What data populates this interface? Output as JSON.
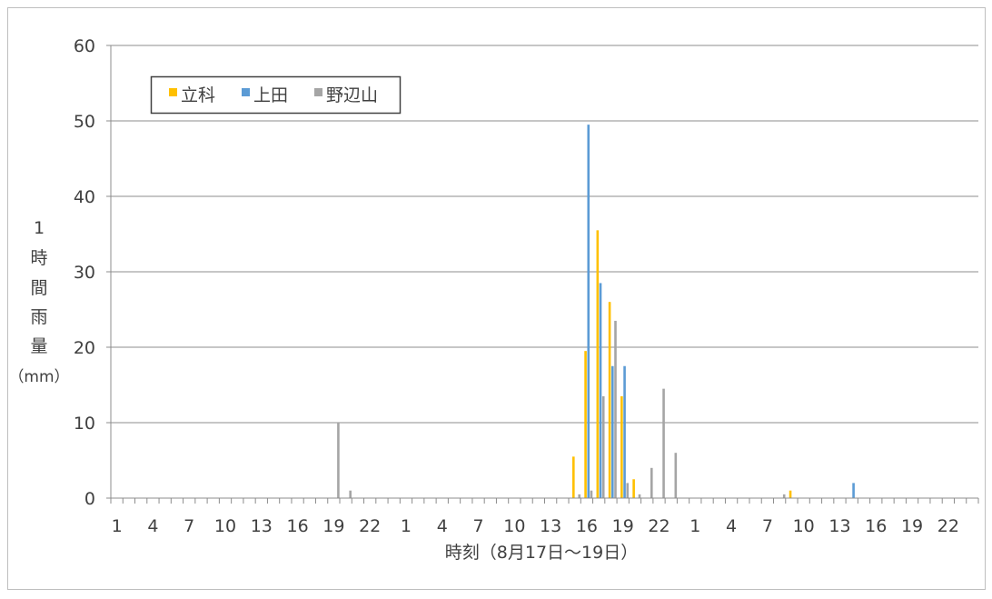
{
  "chart_data": {
    "type": "bar",
    "title": "",
    "xlabel": "時刻（8月17日～19日）",
    "ylabel_chars": [
      "1",
      "時",
      "間",
      "雨",
      "量",
      "（mm）"
    ],
    "ylim": [
      0,
      60
    ],
    "yticks": [
      0,
      10,
      20,
      30,
      40,
      50,
      60
    ],
    "x_tick_labels": [
      "1",
      "4",
      "7",
      "10",
      "13",
      "16",
      "19",
      "22",
      "1",
      "4",
      "7",
      "10",
      "13",
      "16",
      "19",
      "22",
      "1",
      "4",
      "7",
      "10",
      "13",
      "16",
      "19",
      "22"
    ],
    "grid": "horizontal",
    "legend_position": "top-left",
    "hours": 72,
    "series": [
      {
        "name": "立科",
        "color": "#FFC000",
        "points": [
          [
            39,
            5.5
          ],
          [
            40,
            19.5
          ],
          [
            41,
            35.5
          ],
          [
            42,
            26
          ],
          [
            43,
            13.5
          ],
          [
            44,
            2.5
          ],
          [
            57,
            1
          ]
        ]
      },
      {
        "name": "上田",
        "color": "#5B9BD5",
        "points": [
          [
            40,
            49.5
          ],
          [
            41,
            28.5
          ],
          [
            42,
            17.5
          ],
          [
            43,
            17.5
          ],
          [
            62,
            2
          ]
        ]
      },
      {
        "name": "野辺山",
        "color": "#A5A5A5",
        "points": [
          [
            19,
            10
          ],
          [
            20,
            1
          ],
          [
            39,
            0.5
          ],
          [
            40,
            1
          ],
          [
            41,
            13.5
          ],
          [
            42,
            23.5
          ],
          [
            43,
            2
          ],
          [
            44,
            0.5
          ],
          [
            45,
            4
          ],
          [
            46,
            14.5
          ],
          [
            47,
            6
          ],
          [
            56,
            0.5
          ]
        ]
      }
    ]
  }
}
